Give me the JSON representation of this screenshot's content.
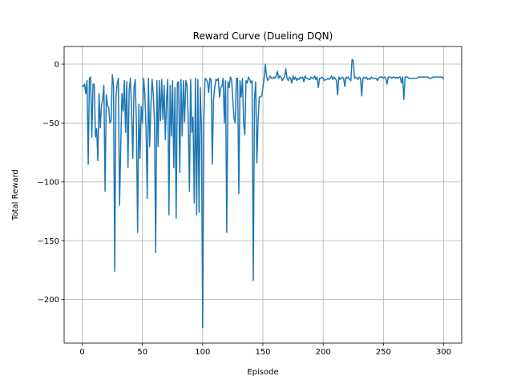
{
  "chart_data": {
    "type": "line",
    "title": "Reward Curve (Dueling DQN)",
    "x_label": "Episode",
    "y_label": "Total Reward",
    "color": "#1f77b4",
    "grid": true,
    "xlim": [
      -15,
      315
    ],
    "ylim": [
      -237,
      15
    ],
    "xticks": [
      0,
      50,
      100,
      150,
      200,
      250,
      300
    ],
    "yticks": [
      {
        "value": -200,
        "label": "−200"
      },
      {
        "value": -150,
        "label": "−150"
      },
      {
        "value": -100,
        "label": "−100"
      },
      {
        "value": -50,
        "label": "−50"
      },
      0
    ],
    "x": [
      0,
      1,
      2,
      3,
      4,
      5,
      6,
      7,
      8,
      9,
      10,
      11,
      12,
      13,
      14,
      15,
      16,
      17,
      18,
      19,
      20,
      21,
      22,
      23,
      24,
      25,
      26,
      27,
      28,
      29,
      30,
      31,
      32,
      33,
      34,
      35,
      36,
      37,
      38,
      39,
      40,
      41,
      42,
      43,
      44,
      45,
      46,
      47,
      48,
      49,
      50,
      51,
      52,
      53,
      54,
      55,
      56,
      57,
      58,
      59,
      60,
      61,
      62,
      63,
      64,
      65,
      66,
      67,
      68,
      69,
      70,
      71,
      72,
      73,
      74,
      75,
      76,
      77,
      78,
      79,
      80,
      81,
      82,
      83,
      84,
      85,
      86,
      87,
      88,
      89,
      90,
      91,
      92,
      93,
      94,
      95,
      96,
      97,
      98,
      99,
      100,
      101,
      102,
      103,
      104,
      105,
      106,
      107,
      108,
      109,
      110,
      111,
      112,
      113,
      114,
      115,
      116,
      117,
      118,
      119,
      120,
      121,
      122,
      123,
      124,
      125,
      126,
      127,
      128,
      129,
      130,
      131,
      132,
      133,
      134,
      135,
      136,
      137,
      138,
      139,
      140,
      141,
      142,
      143,
      144,
      145,
      146,
      147,
      148,
      149,
      150,
      151,
      152,
      153,
      154,
      155,
      156,
      157,
      158,
      159,
      160,
      161,
      162,
      163,
      164,
      165,
      166,
      167,
      168,
      169,
      170,
      171,
      172,
      173,
      174,
      175,
      176,
      177,
      178,
      179,
      180,
      181,
      182,
      183,
      184,
      185,
      186,
      187,
      188,
      189,
      190,
      191,
      192,
      193,
      194,
      195,
      196,
      197,
      198,
      199,
      200,
      201,
      202,
      203,
      204,
      205,
      206,
      207,
      208,
      209,
      210,
      211,
      212,
      213,
      214,
      215,
      216,
      217,
      218,
      219,
      220,
      221,
      222,
      223,
      224,
      225,
      226,
      227,
      228,
      229,
      230,
      231,
      232,
      233,
      234,
      235,
      236,
      237,
      238,
      239,
      240,
      241,
      242,
      243,
      244,
      245,
      246,
      247,
      248,
      249,
      250,
      251,
      252,
      253,
      254,
      255,
      256,
      257,
      258,
      259,
      260,
      261,
      262,
      263,
      264,
      265,
      266,
      267,
      268,
      269,
      270,
      271,
      272,
      273,
      274,
      275,
      276,
      277,
      278,
      279,
      280,
      281,
      282,
      283,
      284,
      285,
      286,
      287,
      288,
      289,
      290,
      291,
      292,
      293,
      294,
      295,
      296,
      297,
      298,
      299,
      300
    ],
    "values": [
      -18,
      -19,
      -17,
      -25,
      -14,
      -85,
      -12,
      -11,
      -62,
      -17,
      -17,
      -62,
      -55,
      -82,
      -25,
      -54,
      -35,
      -30,
      -18,
      -108,
      -26,
      -35,
      -37,
      -50,
      -48,
      -9,
      -18,
      -176,
      -28,
      -17,
      -12,
      -120,
      -70,
      -25,
      -40,
      -14,
      -58,
      -15,
      -88,
      -22,
      -12,
      -40,
      -80,
      -20,
      -13,
      -50,
      -143,
      -34,
      -80,
      -36,
      -50,
      -12,
      -26,
      -55,
      -114,
      -12,
      -70,
      -36,
      -13,
      -25,
      -50,
      -160,
      -14,
      -70,
      -14,
      -48,
      -13,
      -47,
      -18,
      -64,
      -31,
      -13,
      -128,
      -18,
      -61,
      -14,
      -88,
      -20,
      -131,
      -16,
      -15,
      -92,
      -13,
      -61,
      -14,
      -49,
      -14,
      -18,
      -45,
      -108,
      -13,
      -58,
      -45,
      -118,
      -12,
      -128,
      -13,
      -126,
      -20,
      -56,
      -224,
      -45,
      -12,
      -13,
      -15,
      -24,
      -12,
      -13,
      -85,
      -30,
      -20,
      -13,
      -14,
      -12,
      -28,
      -20,
      -19,
      -12,
      -50,
      -14,
      -143,
      -15,
      -20,
      -11,
      -13,
      -30,
      -46,
      -50,
      -12,
      -12,
      -110,
      -14,
      -28,
      -12,
      -50,
      -60,
      -14,
      -16,
      -11,
      -13,
      -16,
      -14,
      -184,
      -30,
      -15,
      -84,
      -48,
      -28,
      -28,
      -27,
      -20,
      -12,
      0,
      -10,
      -14,
      -12,
      -10,
      -12,
      -12,
      -11,
      -12,
      -10,
      -6,
      -12,
      -10,
      -11,
      -14,
      -12,
      -11,
      -4,
      -12,
      -14,
      -11,
      -12,
      -16,
      -10,
      -13,
      -11,
      -14,
      -12,
      -13,
      -11,
      -12,
      -11,
      -15,
      -10,
      -12,
      -12,
      -13,
      -13,
      -11,
      -12,
      -12,
      -10,
      -13,
      -11,
      -20,
      -12,
      -12,
      -11,
      -12,
      -14,
      -13,
      -13,
      -12,
      -13,
      -12,
      -10,
      -13,
      -11,
      -12,
      -14,
      -26,
      -11,
      -13,
      -12,
      -11,
      -12,
      -19,
      -11,
      -12,
      -11,
      -13,
      -14,
      4,
      3,
      -12,
      -11,
      -12,
      -13,
      -11,
      -12,
      -27,
      -12,
      -11,
      -12,
      -11,
      -13,
      -12,
      -13,
      -11,
      -12,
      -12,
      -12,
      -12,
      -14,
      -12,
      -11,
      -11,
      -11,
      -12,
      -11,
      -12,
      -17,
      -11,
      -11,
      -11,
      -12,
      -11,
      -11,
      -12,
      -11,
      -12,
      -11,
      -11,
      -16,
      -11,
      -30,
      -11,
      -11,
      -11,
      -12,
      -12,
      -12,
      -12,
      -12,
      -12,
      -12,
      -12,
      -11,
      -11,
      -11,
      -11,
      -11,
      -11,
      -11,
      -11,
      -11,
      -12,
      -12,
      -12,
      -11,
      -11,
      -11,
      -11,
      -11,
      -11,
      -11,
      -11,
      -11,
      -13
    ]
  }
}
